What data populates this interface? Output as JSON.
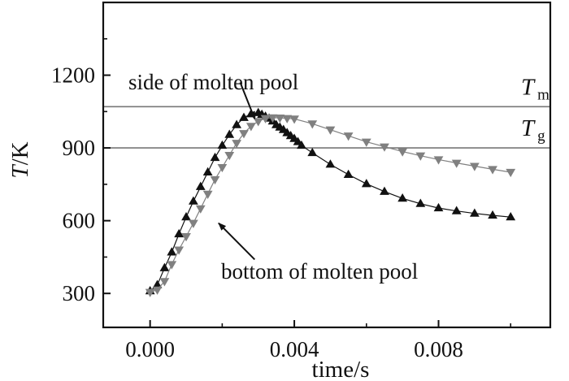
{
  "chart_data": {
    "type": "scatter",
    "xlabel": "time/s",
    "ylabel": "T/K",
    "xlim": [
      -0.0013,
      0.0111
    ],
    "ylim": [
      160,
      1500
    ],
    "x_ticks": [
      0.0,
      0.004,
      0.008
    ],
    "x_tick_labels": [
      "0.000",
      "0.004",
      "0.008"
    ],
    "y_ticks": [
      300,
      600,
      900,
      1200
    ],
    "y_tick_labels": [
      "300",
      "600",
      "900",
      "1200"
    ],
    "grid": false,
    "legend": "none",
    "reference_lines": [
      {
        "label": "T",
        "subscript": "m",
        "y": 1070,
        "color": "#777777"
      },
      {
        "label": "T",
        "subscript": "g",
        "y": 900,
        "color": "#777777"
      }
    ],
    "series": [
      {
        "name": "side of molten pool",
        "marker": "triangle-up",
        "color": "#111111",
        "x": [
          0.0,
          0.0002,
          0.0004,
          0.0006,
          0.0008,
          0.001,
          0.0012,
          0.0014,
          0.0016,
          0.0018,
          0.002,
          0.0022,
          0.0024,
          0.0026,
          0.0028,
          0.003,
          0.0031,
          0.0032,
          0.0033,
          0.0034,
          0.0035,
          0.0036,
          0.0037,
          0.0038,
          0.0039,
          0.004,
          0.0041,
          0.0042,
          0.0045,
          0.005,
          0.0055,
          0.006,
          0.0065,
          0.007,
          0.0075,
          0.008,
          0.0085,
          0.009,
          0.0095,
          0.01
        ],
        "y": [
          310,
          335,
          405,
          470,
          545,
          615,
          680,
          740,
          800,
          860,
          910,
          955,
          995,
          1025,
          1040,
          1045,
          1038,
          1030,
          1022,
          1010,
          995,
          985,
          975,
          962,
          950,
          938,
          925,
          910,
          880,
          832,
          790,
          752,
          720,
          692,
          670,
          652,
          640,
          630,
          622,
          615
        ]
      },
      {
        "name": "bottom of molten pool",
        "marker": "triangle-down",
        "color": "#808080",
        "x": [
          0.0,
          0.0002,
          0.0004,
          0.0006,
          0.0008,
          0.001,
          0.0012,
          0.0014,
          0.0016,
          0.0018,
          0.002,
          0.0022,
          0.0024,
          0.0026,
          0.0028,
          0.003,
          0.0032,
          0.0034,
          0.0036,
          0.0038,
          0.004,
          0.0045,
          0.005,
          0.0055,
          0.006,
          0.0065,
          0.007,
          0.0075,
          0.008,
          0.0085,
          0.009,
          0.0095,
          0.01
        ],
        "y": [
          305,
          315,
          350,
          420,
          480,
          535,
          590,
          650,
          710,
          770,
          820,
          870,
          920,
          960,
          990,
          1010,
          1022,
          1025,
          1024,
          1022,
          1020,
          1000,
          975,
          950,
          925,
          905,
          885,
          868,
          852,
          838,
          825,
          812,
          800
        ]
      }
    ],
    "annotations": [
      {
        "text": "side of molten pool",
        "arrow_from": [
          0.0025,
          1170
        ],
        "arrow_to": [
          0.0029,
          1020
        ]
      },
      {
        "text": "bottom of molten pool",
        "arrow_from": [
          0.0029,
          440
        ],
        "arrow_to": [
          0.0019,
          590
        ]
      }
    ]
  }
}
